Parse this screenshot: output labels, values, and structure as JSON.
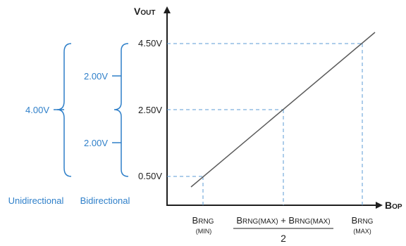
{
  "colors": {
    "axis": "#1e1e1e",
    "accent": "#2e7fc9",
    "line": "#5a5a5a",
    "guide": "#5b9bd5"
  },
  "axes": {
    "y_title_main": "V",
    "y_title_sub": "OUT",
    "x_title_main": "B",
    "x_title_sub": "OP"
  },
  "y_ticks": [
    "4.50V",
    "2.50V",
    "0.50V"
  ],
  "x_labels": {
    "min": {
      "main": "B",
      "sub": "RNG",
      "note": "(MIN)"
    },
    "mid": {
      "num_a_main": "B",
      "num_a_sub": "RNG(MAX)",
      "plus": " + ",
      "num_b_main": "B",
      "num_b_sub": "RNG(MAX)",
      "den": "2"
    },
    "max": {
      "main": "B",
      "sub": "RNG",
      "note": "(MAX)"
    }
  },
  "ranges": {
    "unidirectional_value": "4.00V",
    "bidirectional_upper": "2.00V",
    "bidirectional_lower": "2.00V",
    "unidirectional_label": "Unidirectional",
    "bidirectional_label": "Bidirectional"
  },
  "chart_data": {
    "type": "line",
    "x": [
      "BRNG(MIN)",
      "(BRNG(MAX) + BRNG(MAX)) / 2",
      "BRNG(MAX)"
    ],
    "y": [
      0.5,
      2.5,
      4.5
    ],
    "xlabel": "BOP",
    "ylabel": "VOUT"
  }
}
